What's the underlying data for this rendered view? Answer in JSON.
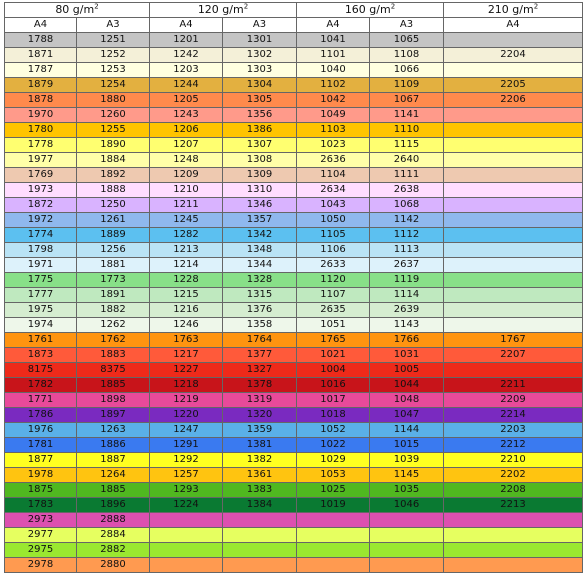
{
  "groups": [
    {
      "label": "80 g/m",
      "exp": "2",
      "subs": [
        "A4",
        "A3"
      ]
    },
    {
      "label": "120 g/m",
      "exp": "2",
      "subs": [
        "A4",
        "A3"
      ]
    },
    {
      "label": "160 g/m",
      "exp": "2",
      "subs": [
        "A4",
        "A3"
      ]
    },
    {
      "label": "210 g/m",
      "exp": "2",
      "subs": [
        "A4"
      ]
    }
  ],
  "rows": [
    {
      "color": "#c4c4c4",
      "cells": [
        "1788",
        "1251",
        "1201",
        "1301",
        "1041",
        "1065",
        ""
      ]
    },
    {
      "color": "#f4f0d8",
      "cells": [
        "1871",
        "1252",
        "1242",
        "1302",
        "1101",
        "1108",
        "2204"
      ]
    },
    {
      "color": "#ffffe0",
      "cells": [
        "1787",
        "1253",
        "1203",
        "1303",
        "1040",
        "1066",
        ""
      ]
    },
    {
      "color": "#e3b040",
      "cells": [
        "1879",
        "1254",
        "1244",
        "1304",
        "1102",
        "1109",
        "2205"
      ]
    },
    {
      "color": "#ff8a4c",
      "cells": [
        "1878",
        "1880",
        "1205",
        "1305",
        "1042",
        "1067",
        "2206"
      ]
    },
    {
      "color": "#ff9a8a",
      "cells": [
        "1970",
        "1260",
        "1243",
        "1356",
        "1049",
        "1141",
        ""
      ]
    },
    {
      "color": "#ffc400",
      "cells": [
        "1780",
        "1255",
        "1206",
        "1386",
        "1103",
        "1110",
        ""
      ]
    },
    {
      "color": "#ffff70",
      "cells": [
        "1778",
        "1890",
        "1207",
        "1307",
        "1023",
        "1115",
        ""
      ]
    },
    {
      "color": "#ffffa8",
      "cells": [
        "1977",
        "1884",
        "1248",
        "1308",
        "2636",
        "2640",
        ""
      ]
    },
    {
      "color": "#eec9b0",
      "cells": [
        "1769",
        "1892",
        "1209",
        "1309",
        "1104",
        "1111",
        ""
      ]
    },
    {
      "color": "#ffddff",
      "cells": [
        "1973",
        "1888",
        "1210",
        "1310",
        "2634",
        "2638",
        ""
      ]
    },
    {
      "color": "#d9b3ff",
      "cells": [
        "1872",
        "1250",
        "1211",
        "1346",
        "1043",
        "1068",
        ""
      ]
    },
    {
      "color": "#8fb8ee",
      "cells": [
        "1972",
        "1261",
        "1245",
        "1357",
        "1050",
        "1142",
        ""
      ]
    },
    {
      "color": "#5cc0f0",
      "cells": [
        "1774",
        "1889",
        "1282",
        "1342",
        "1105",
        "1112",
        ""
      ]
    },
    {
      "color": "#b9e3f5",
      "cells": [
        "1798",
        "1256",
        "1213",
        "1348",
        "1106",
        "1113",
        ""
      ]
    },
    {
      "color": "#ddf2fb",
      "cells": [
        "1971",
        "1881",
        "1214",
        "1344",
        "2633",
        "2637",
        ""
      ]
    },
    {
      "color": "#88e088",
      "cells": [
        "1775",
        "1773",
        "1228",
        "1328",
        "1120",
        "1119",
        ""
      ]
    },
    {
      "color": "#bfe9bf",
      "cells": [
        "1777",
        "1891",
        "1215",
        "1315",
        "1107",
        "1114",
        ""
      ]
    },
    {
      "color": "#d5edd0",
      "cells": [
        "1975",
        "1882",
        "1216",
        "1376",
        "2635",
        "2639",
        ""
      ]
    },
    {
      "color": "#eef7ea",
      "cells": [
        "1974",
        "1262",
        "1246",
        "1358",
        "1051",
        "1143",
        ""
      ]
    },
    {
      "color": "#ff9410",
      "cells": [
        "1761",
        "1762",
        "1763",
        "1764",
        "1765",
        "1766",
        "1767"
      ]
    },
    {
      "color": "#ff5a3a",
      "cells": [
        "1873",
        "1883",
        "1217",
        "1377",
        "1021",
        "1031",
        "2207"
      ]
    },
    {
      "color": "#ee2a1a",
      "cells": [
        "8175",
        "8375",
        "1227",
        "1327",
        "1004",
        "1005",
        ""
      ]
    },
    {
      "color": "#c8141a",
      "cells": [
        "1782",
        "1885",
        "1218",
        "1378",
        "1016",
        "1044",
        "2211"
      ]
    },
    {
      "color": "#e84a9a",
      "cells": [
        "1771",
        "1898",
        "1219",
        "1319",
        "1017",
        "1048",
        "2209"
      ]
    },
    {
      "color": "#7a2ac0",
      "cells": [
        "1786",
        "1897",
        "1220",
        "1320",
        "1018",
        "1047",
        "2214"
      ]
    },
    {
      "color": "#5ab0e8",
      "cells": [
        "1976",
        "1263",
        "1247",
        "1359",
        "1052",
        "1144",
        "2203"
      ]
    },
    {
      "color": "#3a7af0",
      "cells": [
        "1781",
        "1886",
        "1291",
        "1381",
        "1022",
        "1015",
        "2212"
      ]
    },
    {
      "color": "#ffff20",
      "cells": [
        "1877",
        "1887",
        "1292",
        "1382",
        "1029",
        "1039",
        "2210"
      ]
    },
    {
      "color": "#ffc410",
      "cells": [
        "1978",
        "1264",
        "1257",
        "1361",
        "1053",
        "1145",
        "2202"
      ]
    },
    {
      "color": "#50b820",
      "cells": [
        "1875",
        "1885",
        "1293",
        "1383",
        "1025",
        "1035",
        "2208"
      ]
    },
    {
      "color": "#0a7a32",
      "cells": [
        "1783",
        "1896",
        "1224",
        "1384",
        "1019",
        "1046",
        "2213"
      ]
    },
    {
      "color": "#dc50b0",
      "cells": [
        "2973",
        "2888",
        "",
        "",
        "",
        "",
        ""
      ]
    },
    {
      "color": "#e6ff60",
      "cells": [
        "2977",
        "2884",
        "",
        "",
        "",
        "",
        ""
      ]
    },
    {
      "color": "#9ae830",
      "cells": [
        "2975",
        "2882",
        "",
        "",
        "",
        "",
        ""
      ]
    },
    {
      "color": "#ff9a50",
      "cells": [
        "2978",
        "2880",
        "",
        "",
        "",
        "",
        ""
      ]
    }
  ]
}
